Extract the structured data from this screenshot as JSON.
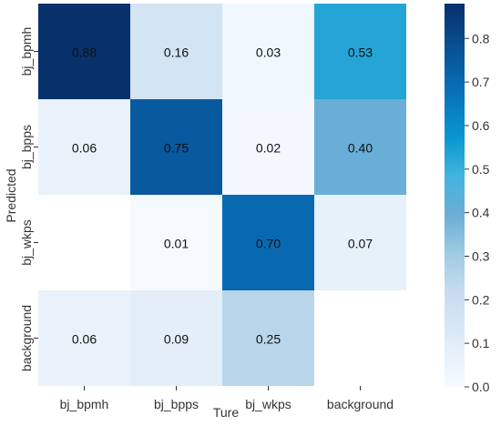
{
  "chart_data": {
    "type": "heatmap",
    "x_categories": [
      "bj_bpmh",
      "bj_bpps",
      "bj_wkps",
      "background"
    ],
    "y_categories": [
      "bj_bpmh",
      "bj_bpps",
      "bj_wkps",
      "background"
    ],
    "values": [
      [
        0.88,
        0.16,
        0.03,
        0.53
      ],
      [
        0.06,
        0.75,
        0.02,
        0.4
      ],
      [
        null,
        0.01,
        0.7,
        0.07
      ],
      [
        0.06,
        0.09,
        0.25,
        null
      ]
    ],
    "cell_labels": [
      [
        "0.88",
        "0.16",
        "0.03",
        "0.53"
      ],
      [
        "0.06",
        "0.75",
        "0.02",
        "0.40"
      ],
      [
        "",
        "0.01",
        "0.70",
        "0.07"
      ],
      [
        "0.06",
        "0.09",
        "0.25",
        ""
      ]
    ],
    "xlabel": "Ture",
    "ylabel": "Predicted",
    "colorbar": {
      "range": [
        0.0,
        0.88
      ],
      "ticks": [
        "0.0",
        "0.1",
        "0.2",
        "0.3",
        "0.4",
        "0.5",
        "0.6",
        "0.7",
        "0.8"
      ],
      "colormap": "Blues"
    },
    "colors": {
      "low": "#f7fbff",
      "high": "#08306b"
    }
  }
}
